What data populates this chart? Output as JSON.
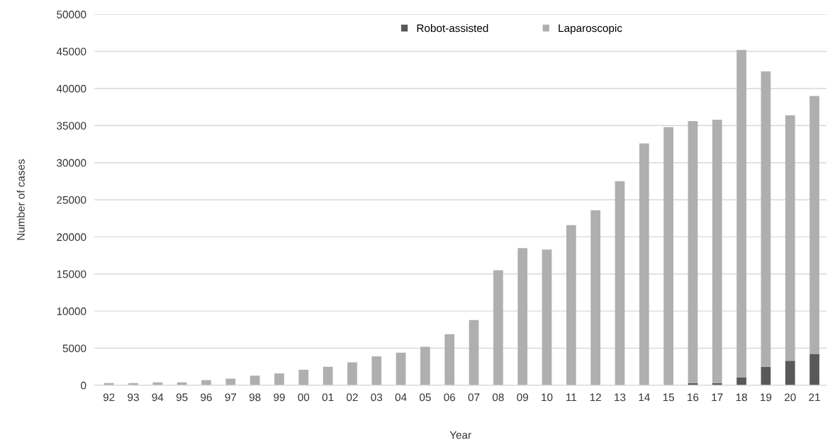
{
  "chart_data": {
    "type": "bar",
    "stacked": true,
    "xlabel": "Year",
    "ylabel": "Number of cases",
    "categories": [
      "92",
      "93",
      "94",
      "95",
      "96",
      "97",
      "98",
      "99",
      "00",
      "01",
      "02",
      "03",
      "04",
      "05",
      "06",
      "07",
      "08",
      "09",
      "10",
      "11",
      "12",
      "13",
      "14",
      "15",
      "16",
      "17",
      "18",
      "19",
      "20",
      "21"
    ],
    "series": [
      {
        "name": "Robot-assisted",
        "color": "#595959",
        "values": [
          0,
          0,
          0,
          0,
          0,
          0,
          0,
          0,
          0,
          0,
          0,
          0,
          0,
          0,
          0,
          0,
          0,
          0,
          0,
          0,
          0,
          0,
          0,
          0,
          300,
          300,
          1100,
          2500,
          3300,
          4200
        ]
      },
      {
        "name": "Laparoscopic",
        "color": "#afafaf",
        "values": [
          300,
          300,
          400,
          400,
          700,
          900,
          1300,
          1600,
          2100,
          2500,
          3100,
          3900,
          4400,
          5200,
          6900,
          8800,
          15500,
          18500,
          18300,
          21600,
          23600,
          27500,
          32600,
          34800,
          35300,
          35500,
          44100,
          39800,
          33100,
          34800
        ]
      }
    ],
    "ylim": [
      0,
      50000
    ],
    "yticks": [
      0,
      5000,
      10000,
      15000,
      20000,
      25000,
      30000,
      35000,
      40000,
      45000,
      50000
    ],
    "grid": "y",
    "legend": "top"
  }
}
